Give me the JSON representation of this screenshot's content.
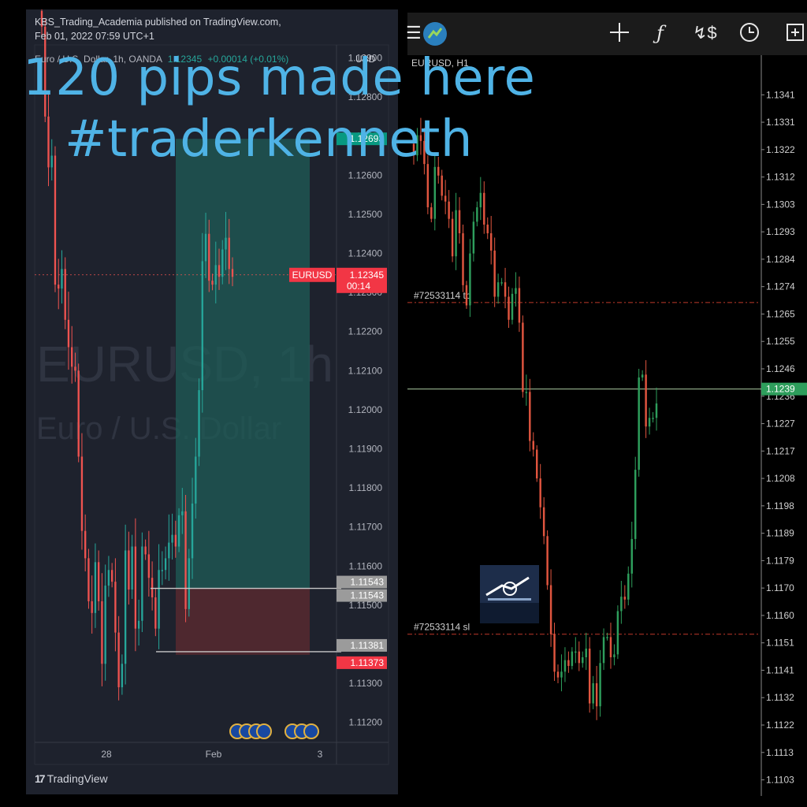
{
  "overlay": {
    "line1": "120 pips made here",
    "line2": "#traderkenneth"
  },
  "left": {
    "publisher": "KBS_Trading_Academia published on TradingView.com,",
    "date": "Feb 01, 2022 07:59 UTC+1",
    "symbol_desc": "Euro / U.S. Dollar, 1h, OANDA",
    "last": "1.12345",
    "change": "+0.00014 (+0.01%)",
    "currency": "USD",
    "watermark1": "EURUSD, 1h",
    "watermark2": "Euro / U.S. Dollar",
    "price_tag_label": "EURUSD",
    "price_tag_value": "1.12345",
    "countdown": "00:14",
    "tp_tag": "1.12693",
    "brand": "TradingView",
    "colors": {
      "up": "#26a69a",
      "down": "#ef5350",
      "bg": "#1e222d"
    }
  },
  "right": {
    "symbol": "EURUSD, H1",
    "tp_label": "#72533114 tp",
    "sl_label": "#72533114 sl",
    "current_price": "1.1239",
    "toolbar_icons": [
      "menu-icon",
      "app-logo-icon",
      "crosshair-icon",
      "function-icon",
      "indicators-icon",
      "clock-icon",
      "add-icon"
    ],
    "colors": {
      "up": "#2e9e5c",
      "down": "#e0553f",
      "bg": "#000000"
    }
  },
  "chart_data": [
    {
      "type": "candlestick",
      "title": "Euro / U.S. Dollar, 1h, OANDA",
      "x_ticks": [
        "28",
        "Feb",
        "3"
      ],
      "y_ticks": [
        1.122,
        1.123,
        1.124,
        1.125,
        1.126,
        1.127,
        1.128,
        1.129,
        1.13
      ],
      "ylim": [
        1.1115,
        1.1301
      ],
      "tick_labels": [
        "1.11200",
        "1.11300",
        "1.11400",
        "1.11500",
        "1.11600",
        "1.11700",
        "1.11800",
        "1.11900",
        "1.12000",
        "1.12100",
        "1.12200",
        "1.12300",
        "1.12400",
        "1.12500",
        "1.12600",
        "1.12700",
        "1.12800",
        "1.12900",
        "1.13000"
      ],
      "levels": [
        {
          "label": "1.11543",
          "price": 1.11543
        },
        {
          "label": "1.11543",
          "price": 1.11543
        },
        {
          "label": "1.11381",
          "price": 1.11381
        },
        {
          "label": "1.11373",
          "price": 1.11373
        }
      ],
      "position": {
        "entry": 1.11543,
        "take_profit": 1.12693,
        "stop_loss": 1.11373
      },
      "closes": [
        1.1298,
        1.1275,
        1.1262,
        1.1265,
        1.1232,
        1.1231,
        1.1236,
        1.1223,
        1.1216,
        1.1211,
        1.121,
        1.1188,
        1.1169,
        1.1162,
        1.1151,
        1.1148,
        1.1161,
        1.1151,
        1.1135,
        1.1155,
        1.1159,
        1.1156,
        1.1143,
        1.1129,
        1.1135,
        1.1164,
        1.1154,
        1.1165,
        1.1144,
        1.1146,
        1.1165,
        1.1163,
        1.1157,
        1.1152,
        1.1144,
        1.1159,
        1.1159,
        1.1162,
        1.1166,
        1.1168,
        1.1165,
        1.1173,
        1.1174,
        1.1149,
        1.1162,
        1.1176,
        1.1188,
        1.1205,
        1.1238,
        1.1245,
        1.1233,
        1.1232,
        1.1237,
        1.1234,
        1.1241,
        1.1244,
        1.1236,
        1.1234
      ]
    },
    {
      "type": "candlestick",
      "title": "EURUSD, H1",
      "tick_labels": [
        "1.13410",
        "1.13315",
        "1.13220",
        "1.13125",
        "1.13030",
        "1.12935",
        "1.12840",
        "1.12745",
        "1.12650",
        "1.12555",
        "1.12460",
        "1.12365",
        "1.12270",
        "1.12175",
        "1.12080",
        "1.11985",
        "1.11890",
        "1.11795",
        "1.11700",
        "1.11605",
        "1.11510",
        "1.11415",
        "1.11320",
        "1.11225",
        "1.11130",
        "1.11035"
      ],
      "ylim": [
        1.1095,
        1.1349
      ],
      "levels": [
        {
          "label": "#72533114 tp",
          "price": 1.1269
        },
        {
          "label": "#72533114 sl",
          "price": 1.1154
        }
      ],
      "current_price": 1.1239,
      "closes": [
        1.132,
        1.1327,
        1.1325,
        1.1317,
        1.1302,
        1.1298,
        1.1316,
        1.1313,
        1.1306,
        1.1304,
        1.1298,
        1.1285,
        1.1301,
        1.1293,
        1.1275,
        1.1268,
        1.1286,
        1.1297,
        1.1302,
        1.1307,
        1.1296,
        1.1293,
        1.1287,
        1.1271,
        1.1276,
        1.1276,
        1.1271,
        1.1263,
        1.1272,
        1.1274,
        1.1262,
        1.1238,
        1.1238,
        1.1221,
        1.1218,
        1.1208,
        1.1198,
        1.1188,
        1.1171,
        1.1154,
        1.1141,
        1.1139,
        1.1141,
        1.1145,
        1.1143,
        1.1148,
        1.1148,
        1.1144,
        1.1146,
        1.1149,
        1.113,
        1.1137,
        1.1129,
        1.1144,
        1.1153,
        1.1153,
        1.1146,
        1.1147,
        1.1162,
        1.1167,
        1.1166,
        1.1175,
        1.1187,
        1.1211,
        1.1243,
        1.1244,
        1.1226,
        1.1229,
        1.1229,
        1.1234
      ]
    }
  ]
}
